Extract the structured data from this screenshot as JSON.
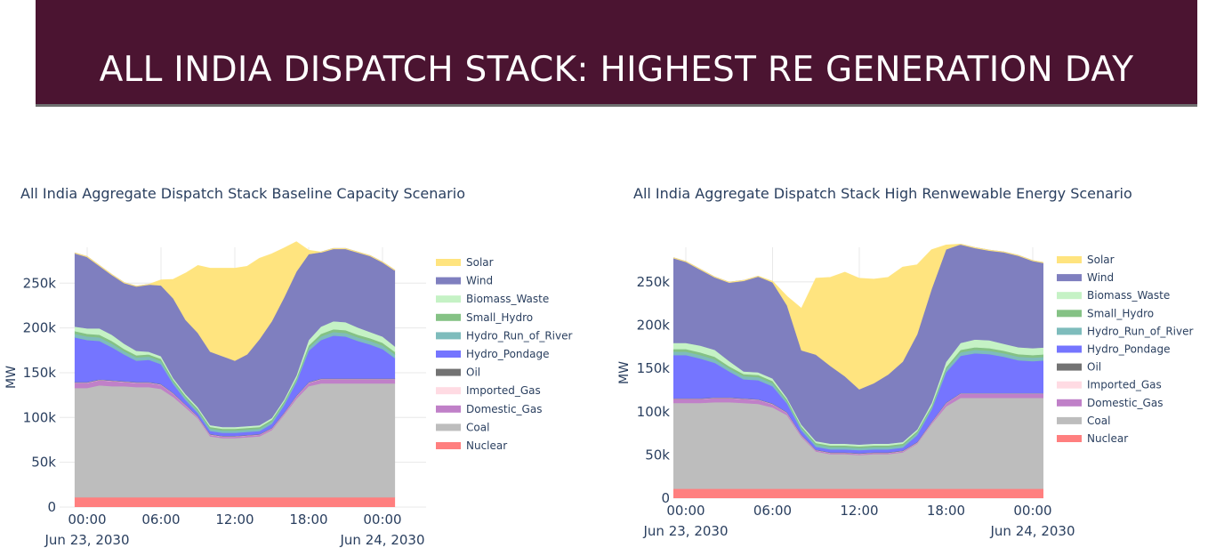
{
  "header": {
    "title": "ALL INDIA DISPATCH STACK: HIGHEST RE GENERATION DAY"
  },
  "chart_data": [
    {
      "type": "area",
      "title": "All India Aggregate Dispatch Stack Baseline Capacity Scenario",
      "ylabel": "MW",
      "ylim": [
        0,
        290000
      ],
      "y_ticks": [
        {
          "v": 0,
          "label": "0"
        },
        {
          "v": 50000,
          "label": "50k"
        },
        {
          "v": 100000,
          "label": "100k"
        },
        {
          "v": 150000,
          "label": "150k"
        },
        {
          "v": 200000,
          "label": "200k"
        },
        {
          "v": 250000,
          "label": "250k"
        }
      ],
      "x_ticks": [
        {
          "h": 0,
          "label": "00:00",
          "sub": "Jun 23, 2030"
        },
        {
          "h": 6,
          "label": "06:00",
          "sub": ""
        },
        {
          "h": 12,
          "label": "12:00",
          "sub": ""
        },
        {
          "h": 18,
          "label": "18:00",
          "sub": ""
        },
        {
          "h": 24,
          "label": "00:00",
          "sub": "Jun 24, 2030"
        }
      ],
      "x_hours": [
        -1,
        0,
        1,
        2,
        3,
        4,
        5,
        6,
        7,
        8,
        9,
        10,
        11,
        12,
        13,
        14,
        15,
        16,
        17,
        18,
        19,
        20,
        21,
        22,
        23,
        24,
        25
      ],
      "series": [
        {
          "name": "Nuclear",
          "color": "#ff7f7f",
          "values": [
            11000,
            11000,
            11000,
            11000,
            11000,
            11000,
            11000,
            11000,
            11000,
            11000,
            11000,
            11000,
            11000,
            11000,
            11000,
            11000,
            11000,
            11000,
            11000,
            11000,
            11000,
            11000,
            11000,
            11000,
            11000,
            11000,
            11000
          ]
        },
        {
          "name": "Coal",
          "color": "#bdbdbd",
          "values": [
            122000,
            122000,
            125000,
            124000,
            124000,
            123000,
            123000,
            121000,
            112000,
            100000,
            88000,
            68000,
            66000,
            66000,
            67000,
            68000,
            75000,
            92000,
            110000,
            124000,
            127000,
            127000,
            127000,
            127000,
            127000,
            127000,
            127000
          ]
        },
        {
          "name": "Domestic_Gas",
          "color": "#c080c8",
          "values": [
            6000,
            6000,
            6000,
            6000,
            5000,
            5000,
            5000,
            5000,
            4000,
            3000,
            2000,
            2000,
            2000,
            2000,
            2000,
            2000,
            2000,
            2000,
            3000,
            4000,
            5000,
            5000,
            5000,
            5000,
            5000,
            5000,
            5000
          ]
        },
        {
          "name": "Imported_Gas",
          "color": "#ffdbe3",
          "values": [
            0,
            0,
            0,
            0,
            0,
            0,
            0,
            0,
            0,
            0,
            0,
            0,
            0,
            0,
            0,
            0,
            0,
            0,
            0,
            0,
            0,
            0,
            0,
            0,
            0,
            0,
            0
          ]
        },
        {
          "name": "Oil",
          "color": "#737373",
          "values": [
            500,
            500,
            500,
            500,
            500,
            500,
            500,
            500,
            500,
            500,
            500,
            500,
            500,
            500,
            500,
            500,
            500,
            500,
            500,
            500,
            500,
            500,
            500,
            500,
            500,
            500,
            500
          ]
        },
        {
          "name": "Hydro_Pondage",
          "color": "#7575ff",
          "values": [
            50000,
            47000,
            43000,
            37000,
            30000,
            24000,
            25000,
            22000,
            10000,
            5000,
            3500,
            3500,
            3500,
            3500,
            3500,
            3500,
            4500,
            8000,
            15000,
            35000,
            43000,
            48000,
            47000,
            42000,
            38000,
            33000,
            23000
          ]
        },
        {
          "name": "Hydro_Run_of_River",
          "color": "#7ebcbc",
          "values": [
            4000,
            4000,
            4000,
            4000,
            3500,
            3500,
            3500,
            3500,
            2500,
            2500,
            2500,
            2500,
            2500,
            2500,
            2500,
            2500,
            2500,
            2500,
            2500,
            3500,
            4000,
            4000,
            4000,
            4000,
            4000,
            4000,
            4000
          ]
        },
        {
          "name": "Small_Hydro",
          "color": "#85c285",
          "values": [
            3000,
            3000,
            3000,
            3000,
            2500,
            2500,
            2500,
            2500,
            2000,
            2000,
            2000,
            2000,
            2000,
            2000,
            2000,
            2000,
            2000,
            2000,
            2000,
            2500,
            3000,
            3000,
            3000,
            3000,
            3000,
            3000,
            3000
          ]
        },
        {
          "name": "Biomass_Waste",
          "color": "#c5f2c5",
          "values": [
            5000,
            6000,
            7000,
            7000,
            6000,
            5000,
            3000,
            3000,
            2000,
            2000,
            2000,
            2000,
            2000,
            2000,
            2000,
            2000,
            2000,
            2000,
            3000,
            6000,
            8000,
            9000,
            9000,
            8000,
            7000,
            7000,
            6000
          ]
        },
        {
          "name": "Wind",
          "color": "#7f7fbf",
          "values": [
            82000,
            80000,
            70000,
            67000,
            68000,
            72000,
            75000,
            79000,
            89000,
            83000,
            83000,
            82000,
            79000,
            74000,
            80000,
            96000,
            108000,
            114000,
            116000,
            96000,
            83000,
            81000,
            82000,
            84000,
            85000,
            83000,
            85000
          ]
        },
        {
          "name": "Solar",
          "color": "#ffe47f",
          "values": [
            0,
            0,
            0,
            0,
            0,
            0,
            0,
            6000,
            21000,
            52000,
            75000,
            93000,
            98000,
            103000,
            98000,
            90000,
            75000,
            55000,
            33000,
            4000,
            0,
            0,
            0,
            0,
            0,
            0,
            0
          ]
        }
      ],
      "legend": {
        "placement": "right"
      }
    },
    {
      "type": "area",
      "title": "All India Aggregate Dispatch Stack High Renwewable Energy Scenario",
      "ylabel": "MW",
      "ylim": [
        0,
        290000
      ],
      "y_ticks": [
        {
          "v": 0,
          "label": "0"
        },
        {
          "v": 50000,
          "label": "50k"
        },
        {
          "v": 100000,
          "label": "100k"
        },
        {
          "v": 150000,
          "label": "150k"
        },
        {
          "v": 200000,
          "label": "200k"
        },
        {
          "v": 250000,
          "label": "250k"
        }
      ],
      "x_ticks": [
        {
          "h": 0,
          "label": "00:00",
          "sub": "Jun 23, 2030"
        },
        {
          "h": 6,
          "label": "06:00",
          "sub": ""
        },
        {
          "h": 12,
          "label": "12:00",
          "sub": ""
        },
        {
          "h": 18,
          "label": "18:00",
          "sub": ""
        },
        {
          "h": 24,
          "label": "00:00",
          "sub": "Jun 24, 2030"
        }
      ],
      "x_hours": [
        -1,
        0,
        1,
        2,
        3,
        4,
        5,
        6,
        7,
        8,
        9,
        10,
        11,
        12,
        13,
        14,
        15,
        16,
        17,
        18,
        19,
        20,
        21,
        22,
        23,
        24,
        25
      ],
      "series": [
        {
          "name": "Nuclear",
          "color": "#ff7f7f",
          "values": [
            11000,
            11000,
            11000,
            11000,
            11000,
            11000,
            11000,
            11000,
            11000,
            11000,
            11000,
            11000,
            11000,
            11000,
            11000,
            11000,
            11000,
            11000,
            11000,
            11000,
            11000,
            11000,
            11000,
            11000,
            11000,
            11000,
            11000
          ]
        },
        {
          "name": "Coal",
          "color": "#bdbdbd",
          "values": [
            99000,
            99000,
            99000,
            100000,
            100000,
            99000,
            98000,
            94000,
            85000,
            60000,
            43000,
            40000,
            40000,
            39000,
            40000,
            40000,
            42000,
            52000,
            75000,
            95000,
            105000,
            105000,
            105000,
            105000,
            105000,
            105000,
            105000
          ]
        },
        {
          "name": "Domestic_Gas",
          "color": "#c080c8",
          "values": [
            5000,
            5000,
            5000,
            5000,
            5000,
            5000,
            5000,
            4000,
            3000,
            2000,
            1500,
            1500,
            1500,
            1500,
            1500,
            1500,
            1500,
            1500,
            2000,
            4000,
            5000,
            5000,
            5000,
            5000,
            5000,
            5000,
            5000
          ]
        },
        {
          "name": "Imported_Gas",
          "color": "#ffdbe3",
          "values": [
            0,
            0,
            0,
            0,
            0,
            0,
            0,
            0,
            0,
            0,
            0,
            0,
            0,
            0,
            0,
            0,
            0,
            0,
            0,
            0,
            0,
            0,
            0,
            0,
            0,
            0,
            0
          ]
        },
        {
          "name": "Oil",
          "color": "#737373",
          "values": [
            500,
            500,
            500,
            500,
            500,
            500,
            500,
            500,
            500,
            500,
            500,
            500,
            500,
            500,
            500,
            500,
            500,
            500,
            500,
            500,
            500,
            500,
            500,
            500,
            500,
            500,
            500
          ]
        },
        {
          "name": "Hydro_Pondage",
          "color": "#7575ff",
          "values": [
            50000,
            50000,
            46000,
            40000,
            30000,
            22000,
            22000,
            20000,
            10000,
            5000,
            3500,
            3500,
            3500,
            3500,
            3500,
            3500,
            3500,
            8000,
            14000,
            35000,
            43000,
            46000,
            45000,
            42000,
            38000,
            37000,
            38000
          ]
        },
        {
          "name": "Hydro_Run_of_River",
          "color": "#7ebcbc",
          "values": [
            4000,
            4000,
            4000,
            4000,
            3500,
            3500,
            3500,
            3500,
            2500,
            2500,
            2500,
            2500,
            2500,
            2500,
            2500,
            2500,
            2500,
            2500,
            2500,
            3500,
            4000,
            4000,
            4000,
            4000,
            4000,
            4000,
            4000
          ]
        },
        {
          "name": "Small_Hydro",
          "color": "#85c285",
          "values": [
            3000,
            3000,
            3000,
            3000,
            2500,
            2500,
            2500,
            2500,
            2000,
            2000,
            2000,
            2000,
            2000,
            2000,
            2000,
            2000,
            2000,
            2000,
            2000,
            2500,
            3000,
            3000,
            3000,
            3000,
            3000,
            3000,
            3000
          ]
        },
        {
          "name": "Biomass_Waste",
          "color": "#c5f2c5",
          "values": [
            7000,
            7000,
            8000,
            8000,
            6000,
            3000,
            3000,
            3000,
            2000,
            2000,
            2000,
            2000,
            2000,
            2000,
            2000,
            2000,
            2000,
            2000,
            3000,
            6000,
            8000,
            9000,
            9000,
            8000,
            8000,
            8000,
            8000
          ]
        },
        {
          "name": "Wind",
          "color": "#7f7fbf",
          "values": [
            99000,
            94000,
            88000,
            84000,
            91000,
            105000,
            111000,
            111000,
            107000,
            86000,
            100000,
            90000,
            78000,
            64000,
            70000,
            80000,
            93000,
            110000,
            132000,
            130000,
            114000,
            106000,
            104000,
            106000,
            106000,
            101000,
            97000
          ]
        },
        {
          "name": "Solar",
          "color": "#ffe47f",
          "values": [
            0,
            0,
            0,
            0,
            0,
            0,
            0,
            1000,
            10000,
            48000,
            88000,
            102000,
            120000,
            128000,
            120000,
            112000,
            109000,
            80000,
            45000,
            5000,
            0,
            0,
            0,
            0,
            0,
            0,
            0
          ]
        }
      ],
      "legend": {
        "placement": "right"
      }
    }
  ]
}
